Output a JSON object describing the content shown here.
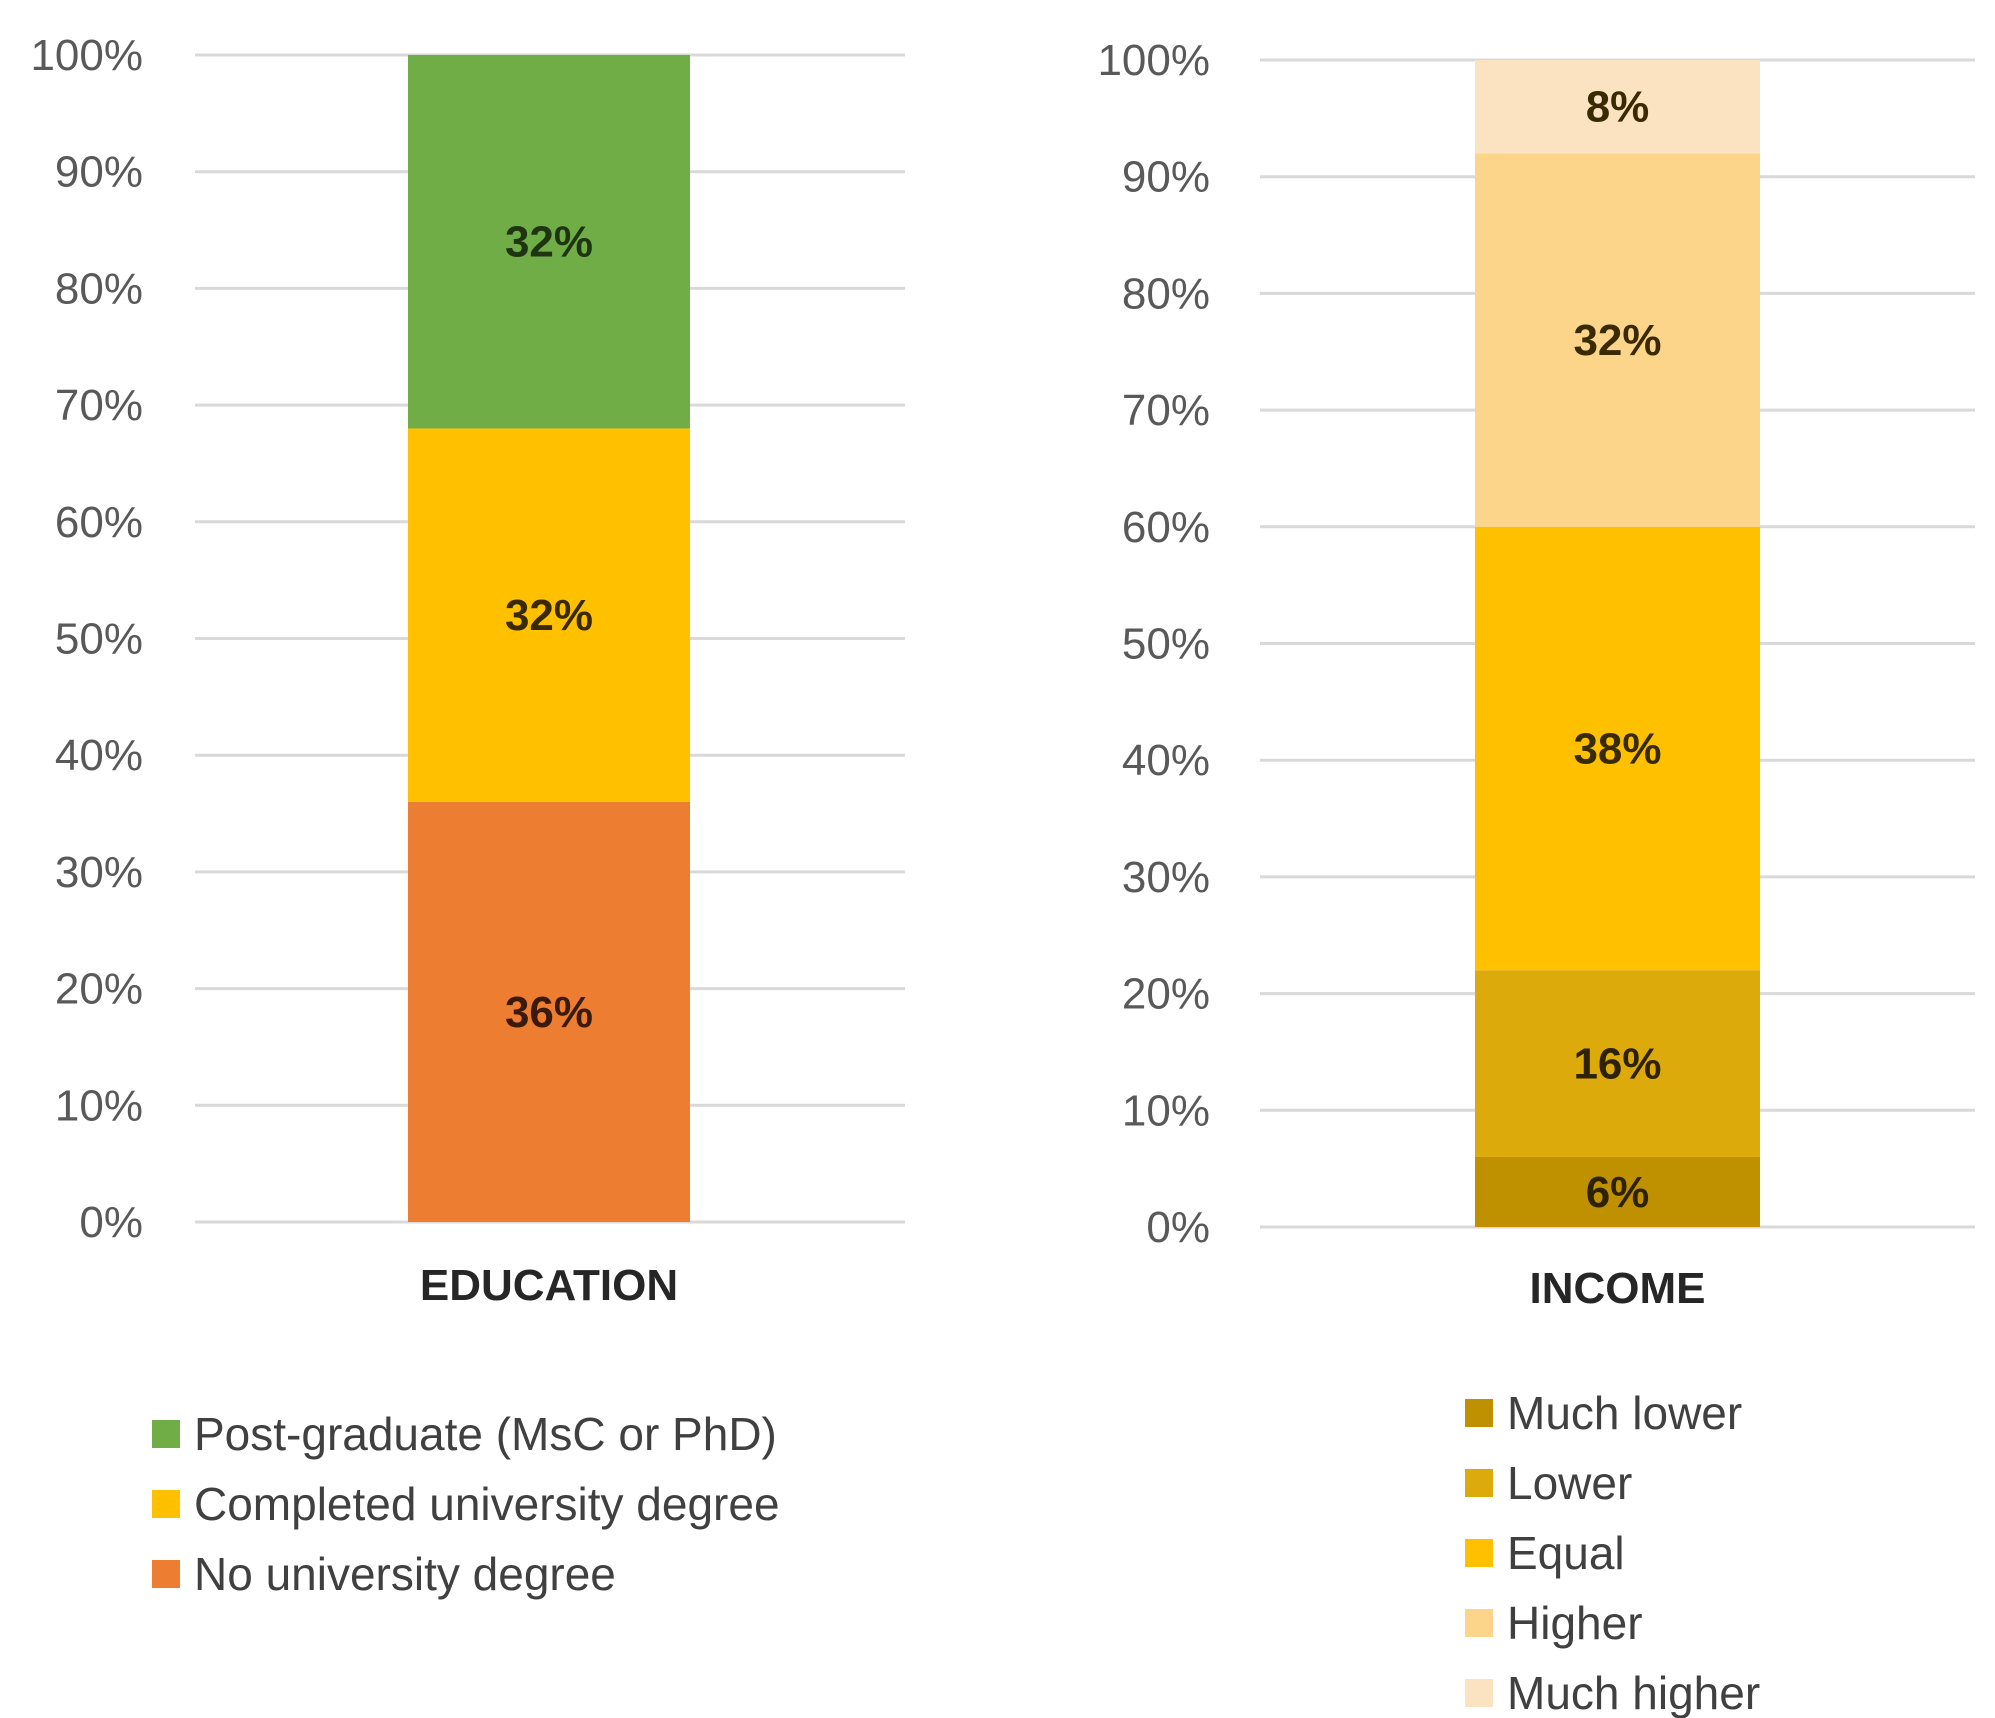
{
  "chart_data": [
    {
      "type": "bar",
      "stacked": true,
      "categories": [
        "EDUCATION"
      ],
      "ylim": [
        0,
        100
      ],
      "yticks": [
        "0%",
        "10%",
        "20%",
        "30%",
        "40%",
        "50%",
        "60%",
        "70%",
        "80%",
        "90%",
        "100%"
      ],
      "grid": true,
      "legend_position": "bottom",
      "series": [
        {
          "name": "No university degree",
          "values": [
            36
          ],
          "label": "36%",
          "color": "#ED7D31"
        },
        {
          "name": "Completed university degree",
          "values": [
            32
          ],
          "label": "32%",
          "color": "#FFC000"
        },
        {
          "name": "Post-graduate (MsC or PhD)",
          "values": [
            32
          ],
          "label": "32%",
          "color": "#70AD47"
        }
      ],
      "legend_order": [
        "Post-graduate (MsC or PhD)",
        "Completed university degree",
        "No university degree"
      ]
    },
    {
      "type": "bar",
      "stacked": true,
      "categories": [
        "INCOME"
      ],
      "ylim": [
        0,
        100
      ],
      "yticks": [
        "0%",
        "10%",
        "20%",
        "30%",
        "40%",
        "50%",
        "60%",
        "70%",
        "80%",
        "90%",
        "100%"
      ],
      "grid": true,
      "legend_position": "bottom",
      "series": [
        {
          "name": "Much lower",
          "values": [
            6
          ],
          "label": "6%",
          "color": "#BF9000"
        },
        {
          "name": "Lower",
          "values": [
            16
          ],
          "label": "16%",
          "color": "#DDAA0B"
        },
        {
          "name": "Equal",
          "values": [
            38
          ],
          "label": "38%",
          "color": "#FFC000"
        },
        {
          "name": "Higher",
          "values": [
            32
          ],
          "label": "32%",
          "color": "#FCD48A"
        },
        {
          "name": "Much higher",
          "values": [
            8
          ],
          "label": "8%",
          "color": "#FBE3C2"
        }
      ],
      "legend_order": [
        "Much lower",
        "Lower",
        "Equal",
        "Higher",
        "Much higher"
      ]
    }
  ]
}
